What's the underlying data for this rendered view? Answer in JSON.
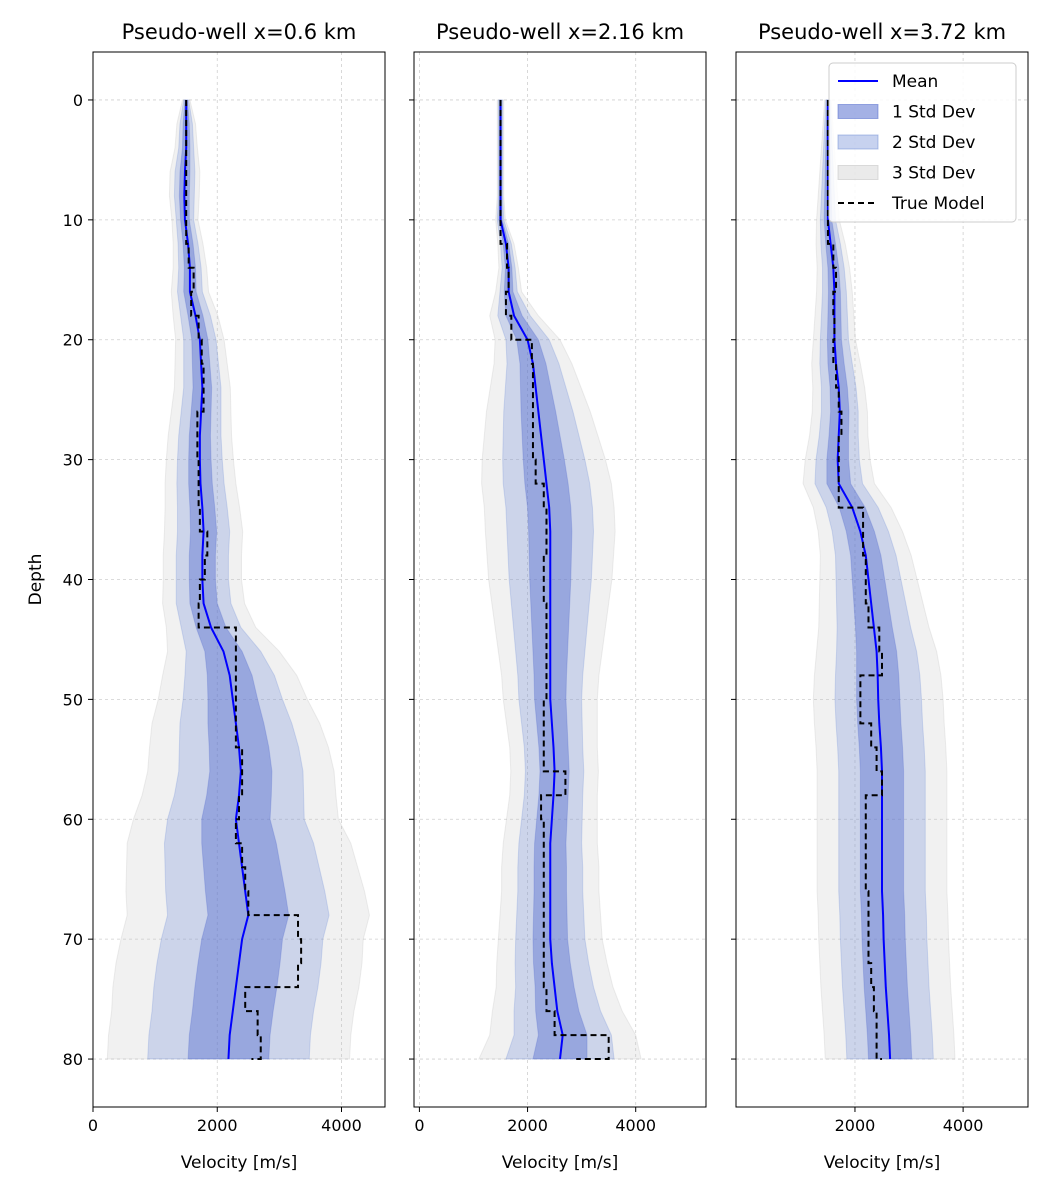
{
  "chart_data": [
    {
      "type": "line",
      "title": "Pseudo-well x=0.6 km",
      "xlabel": "Velocity [m/s]",
      "ylabel": "Depth",
      "xlim": [
        0,
        4700
      ],
      "ylim": [
        84,
        -4
      ],
      "xticks": [
        0,
        2000,
        4000
      ],
      "yticks": [
        0,
        10,
        20,
        30,
        40,
        50,
        60,
        70,
        80
      ],
      "grid": true,
      "depth": [
        0,
        2,
        4,
        6,
        8,
        10,
        12,
        14,
        16,
        18,
        20,
        22,
        24,
        26,
        28,
        30,
        32,
        34,
        36,
        38,
        40,
        42,
        44,
        46,
        48,
        50,
        52,
        54,
        56,
        58,
        60,
        62,
        64,
        66,
        68,
        70,
        72,
        74,
        76,
        78,
        80
      ],
      "series": [
        {
          "name": "Mean",
          "values": [
            1500,
            1500,
            1500,
            1480,
            1470,
            1480,
            1530,
            1560,
            1560,
            1650,
            1720,
            1740,
            1760,
            1740,
            1720,
            1720,
            1730,
            1760,
            1780,
            1760,
            1760,
            1780,
            1900,
            2100,
            2200,
            2250,
            2300,
            2350,
            2380,
            2350,
            2300,
            2350,
            2400,
            2450,
            2500,
            2400,
            2350,
            2300,
            2250,
            2200,
            2180
          ]
        },
        {
          "name": "1 Std Dev",
          "half_width": [
            20,
            50,
            60,
            80,
            80,
            70,
            80,
            90,
            100,
            120,
            130,
            140,
            150,
            160,
            170,
            180,
            190,
            200,
            210,
            210,
            210,
            220,
            240,
            300,
            360,
            400,
            450,
            480,
            500,
            520,
            550,
            600,
            620,
            640,
            650,
            650,
            660,
            660,
            650,
            650,
            650
          ]
        },
        {
          "name": "2 Std Dev",
          "half_width": [
            40,
            100,
            120,
            160,
            160,
            140,
            160,
            180,
            200,
            240,
            260,
            280,
            300,
            320,
            340,
            360,
            380,
            400,
            420,
            420,
            420,
            440,
            480,
            600,
            720,
            800,
            900,
            960,
            1000,
            1040,
            1100,
            1200,
            1240,
            1280,
            1300,
            1300,
            1320,
            1320,
            1300,
            1300,
            1300
          ]
        },
        {
          "name": "3 Std Dev",
          "half_width": [
            60,
            150,
            180,
            240,
            240,
            210,
            240,
            270,
            300,
            360,
            390,
            420,
            450,
            480,
            510,
            540,
            570,
            600,
            630,
            630,
            630,
            660,
            720,
            900,
            1080,
            1200,
            1350,
            1440,
            1500,
            1560,
            1650,
            1800,
            1860,
            1920,
            1950,
            1950,
            1980,
            1980,
            1950,
            1950,
            1950
          ]
        },
        {
          "name": "True Model",
          "values": [
            1500,
            1500,
            1500,
            1500,
            1500,
            1500,
            1540,
            1620,
            1580,
            1700,
            1750,
            1780,
            1780,
            1680,
            1680,
            1700,
            1700,
            1720,
            1840,
            1800,
            1720,
            1700,
            2300,
            2300,
            2300,
            2300,
            2300,
            2400,
            2400,
            2350,
            2300,
            2400,
            2450,
            2500,
            3300,
            3350,
            3300,
            2450,
            2650,
            2700,
            2550
          ]
        }
      ]
    },
    {
      "type": "line",
      "title": "Pseudo-well x=2.16 km",
      "xlabel": "Velocity [m/s]",
      "ylabel": "",
      "xlim": [
        -100,
        5300
      ],
      "ylim": [
        84,
        -4
      ],
      "xticks": [
        0,
        2000,
        4000
      ],
      "yticks": [
        0,
        10,
        20,
        30,
        40,
        50,
        60,
        70,
        80
      ],
      "grid": true,
      "depth": [
        0,
        2,
        4,
        6,
        8,
        10,
        12,
        14,
        16,
        18,
        20,
        22,
        24,
        26,
        28,
        30,
        32,
        34,
        36,
        38,
        40,
        42,
        44,
        46,
        48,
        50,
        52,
        54,
        56,
        58,
        60,
        62,
        64,
        66,
        68,
        70,
        72,
        74,
        76,
        78,
        80
      ],
      "series": [
        {
          "name": "Mean",
          "values": [
            1500,
            1500,
            1500,
            1500,
            1500,
            1500,
            1600,
            1650,
            1650,
            1750,
            2000,
            2100,
            2150,
            2200,
            2250,
            2300,
            2350,
            2400,
            2420,
            2420,
            2420,
            2420,
            2420,
            2420,
            2420,
            2420,
            2450,
            2480,
            2500,
            2480,
            2450,
            2420,
            2420,
            2420,
            2420,
            2420,
            2450,
            2500,
            2550,
            2650,
            2600
          ]
        },
        {
          "name": "1 Std Dev",
          "half_width": [
            20,
            20,
            20,
            20,
            20,
            30,
            50,
            60,
            80,
            150,
            200,
            240,
            280,
            320,
            350,
            380,
            400,
            400,
            400,
            390,
            380,
            360,
            340,
            320,
            300,
            290,
            280,
            270,
            270,
            270,
            280,
            290,
            300,
            300,
            310,
            320,
            340,
            360,
            400,
            450,
            500
          ]
        },
        {
          "name": "2 Std Dev",
          "half_width": [
            40,
            40,
            40,
            40,
            40,
            60,
            100,
            120,
            160,
            300,
            400,
            480,
            560,
            640,
            700,
            760,
            800,
            800,
            800,
            780,
            760,
            720,
            680,
            640,
            600,
            580,
            560,
            540,
            540,
            540,
            560,
            580,
            600,
            600,
            620,
            640,
            680,
            720,
            800,
            900,
            1000
          ]
        },
        {
          "name": "3 Std Dev",
          "half_width": [
            60,
            60,
            60,
            60,
            60,
            90,
            150,
            180,
            240,
            450,
            600,
            720,
            840,
            960,
            1050,
            1140,
            1200,
            1200,
            1200,
            1170,
            1140,
            1080,
            1020,
            960,
            900,
            870,
            840,
            810,
            810,
            810,
            840,
            870,
            900,
            900,
            930,
            960,
            1020,
            1080,
            1200,
            1350,
            1500
          ]
        },
        {
          "name": "True Model",
          "values": [
            1500,
            1500,
            1500,
            1500,
            1500,
            1500,
            1620,
            1650,
            1600,
            1700,
            2080,
            2100,
            2100,
            2100,
            2100,
            2150,
            2300,
            2350,
            2350,
            2300,
            2300,
            2350,
            2350,
            2350,
            2350,
            2300,
            2300,
            2300,
            2700,
            2250,
            2300,
            2300,
            2300,
            2300,
            2300,
            2300,
            2300,
            2350,
            2500,
            3500,
            2900
          ]
        }
      ]
    },
    {
      "type": "line",
      "title": "Pseudo-well x=3.72 km",
      "xlabel": "Velocity [m/s]",
      "ylabel": "",
      "xlim": [
        -200,
        5200
      ],
      "ylim": [
        84,
        -4
      ],
      "xticks": [
        2000,
        4000
      ],
      "yticks": [
        0,
        10,
        20,
        30,
        40,
        50,
        60,
        70,
        80
      ],
      "grid": true,
      "legend": {
        "position": "top-right",
        "entries": [
          "Mean",
          "1 Std Dev",
          "2 Std Dev",
          "3 Std Dev",
          "True Model"
        ]
      },
      "depth": [
        0,
        2,
        4,
        6,
        8,
        10,
        12,
        14,
        16,
        18,
        20,
        22,
        24,
        26,
        28,
        30,
        32,
        34,
        36,
        38,
        40,
        42,
        44,
        46,
        48,
        50,
        52,
        54,
        56,
        58,
        60,
        62,
        64,
        66,
        68,
        70,
        72,
        74,
        76,
        78,
        80
      ],
      "series": [
        {
          "name": "Mean",
          "values": [
            1500,
            1500,
            1500,
            1500,
            1500,
            1500,
            1550,
            1600,
            1620,
            1620,
            1620,
            1650,
            1700,
            1720,
            1700,
            1680,
            1700,
            1950,
            2100,
            2200,
            2250,
            2300,
            2350,
            2400,
            2420,
            2430,
            2450,
            2480,
            2500,
            2500,
            2500,
            2500,
            2500,
            2500,
            2520,
            2530,
            2550,
            2570,
            2600,
            2630,
            2650
          ]
        },
        {
          "name": "1 Std Dev",
          "half_width": [
            20,
            30,
            40,
            50,
            60,
            70,
            90,
            100,
            110,
            120,
            130,
            150,
            160,
            170,
            180,
            200,
            220,
            240,
            260,
            280,
            300,
            320,
            340,
            370,
            390,
            400,
            400,
            400,
            400,
            400,
            400,
            400,
            400,
            400,
            400,
            400,
            400,
            400,
            400,
            400,
            400
          ]
        },
        {
          "name": "2 Std Dev",
          "half_width": [
            40,
            60,
            80,
            100,
            120,
            140,
            180,
            200,
            220,
            240,
            260,
            300,
            320,
            340,
            360,
            400,
            440,
            480,
            520,
            560,
            600,
            640,
            680,
            740,
            780,
            800,
            800,
            800,
            800,
            800,
            800,
            800,
            800,
            800,
            800,
            800,
            800,
            800,
            800,
            800,
            800
          ]
        },
        {
          "name": "3 Std Dev",
          "half_width": [
            60,
            90,
            120,
            150,
            180,
            210,
            270,
            300,
            330,
            360,
            390,
            450,
            480,
            510,
            540,
            600,
            660,
            720,
            780,
            840,
            900,
            960,
            1020,
            1110,
            1170,
            1200,
            1200,
            1200,
            1200,
            1200,
            1200,
            1200,
            1200,
            1200,
            1200,
            1200,
            1200,
            1200,
            1200,
            1200,
            1200
          ]
        },
        {
          "name": "True Model",
          "values": [
            1500,
            1500,
            1500,
            1500,
            1500,
            1500,
            1600,
            1650,
            1600,
            1620,
            1600,
            1650,
            1700,
            1750,
            1700,
            1700,
            1700,
            2150,
            2150,
            2200,
            2200,
            2250,
            2450,
            2500,
            2100,
            2100,
            2300,
            2400,
            2500,
            2200,
            2200,
            2200,
            2200,
            2250,
            2250,
            2250,
            2300,
            2350,
            2400,
            2400,
            2500
          ]
        }
      ]
    }
  ]
}
